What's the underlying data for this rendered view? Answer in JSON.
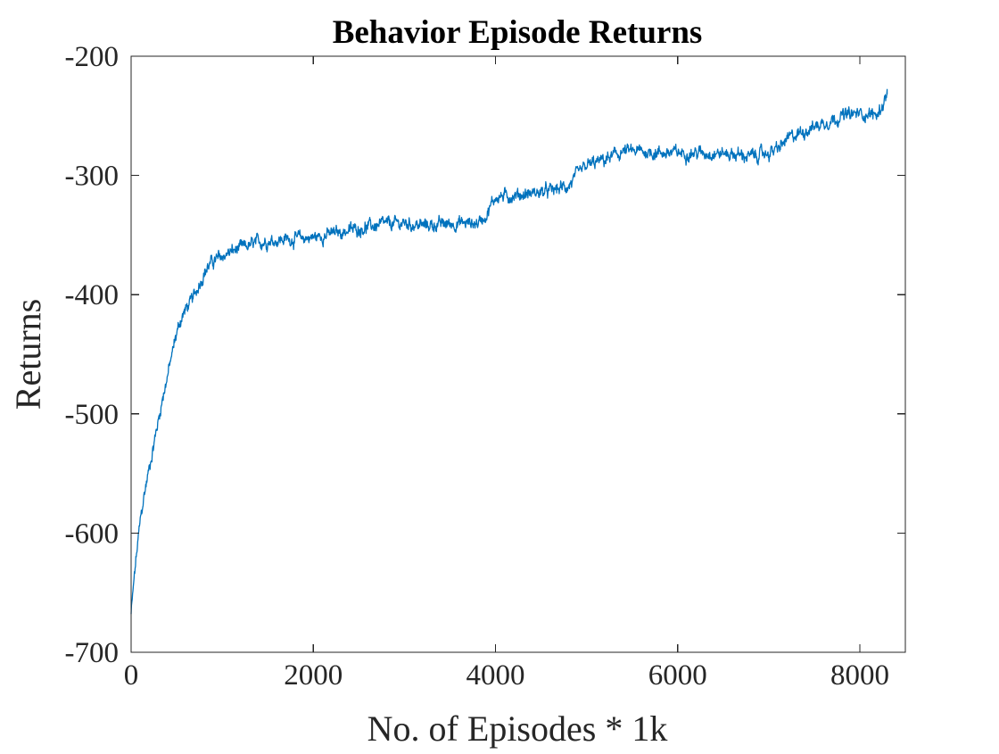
{
  "chart_data": {
    "type": "line",
    "title": "Behavior Episode Returns",
    "xlabel": "No. of Episodes * 1k",
    "ylabel": "Returns",
    "xlim": [
      0,
      8500
    ],
    "ylim": [
      -700,
      -200
    ],
    "xticks": [
      0,
      2000,
      4000,
      6000,
      8000
    ],
    "xtick_labels": [
      "0",
      "2000",
      "4000",
      "6000",
      "8000"
    ],
    "yticks": [
      -700,
      -600,
      -500,
      -400,
      -300,
      -200
    ],
    "ytick_labels": [
      "-700",
      "-600",
      "-500",
      "-400",
      "-300",
      "-200"
    ],
    "grid": false,
    "legend": null,
    "series": [
      {
        "color": "#0072BD",
        "noise_amplitude": 6,
        "x": [
          0,
          20,
          50,
          100,
          150,
          200,
          250,
          300,
          350,
          400,
          450,
          500,
          550,
          600,
          650,
          700,
          750,
          800,
          850,
          900,
          1000,
          1100,
          1200,
          1300,
          1400,
          1500,
          1600,
          1800,
          2000,
          2200,
          2400,
          2600,
          2800,
          3000,
          3200,
          3400,
          3600,
          3800,
          3900,
          4000,
          4200,
          4400,
          4600,
          4800,
          4900,
          5000,
          5200,
          5400,
          5600,
          5800,
          6000,
          6200,
          6400,
          6600,
          6800,
          7000,
          7100,
          7200,
          7400,
          7600,
          7800,
          8000,
          8200,
          8300
        ],
        "y": [
          -668,
          -650,
          -625,
          -590,
          -565,
          -545,
          -525,
          -505,
          -485,
          -468,
          -450,
          -432,
          -420,
          -412,
          -407,
          -400,
          -390,
          -382,
          -376,
          -372,
          -368,
          -364,
          -361,
          -359,
          -356,
          -355,
          -354,
          -353,
          -352,
          -349,
          -346,
          -343,
          -341,
          -340,
          -342,
          -341,
          -340,
          -340,
          -333,
          -318,
          -317,
          -315,
          -313,
          -309,
          -300,
          -292,
          -287,
          -280,
          -280,
          -281,
          -281,
          -281,
          -281,
          -282,
          -284,
          -281,
          -278,
          -270,
          -262,
          -256,
          -250,
          -248,
          -249,
          -232
        ]
      }
    ]
  }
}
